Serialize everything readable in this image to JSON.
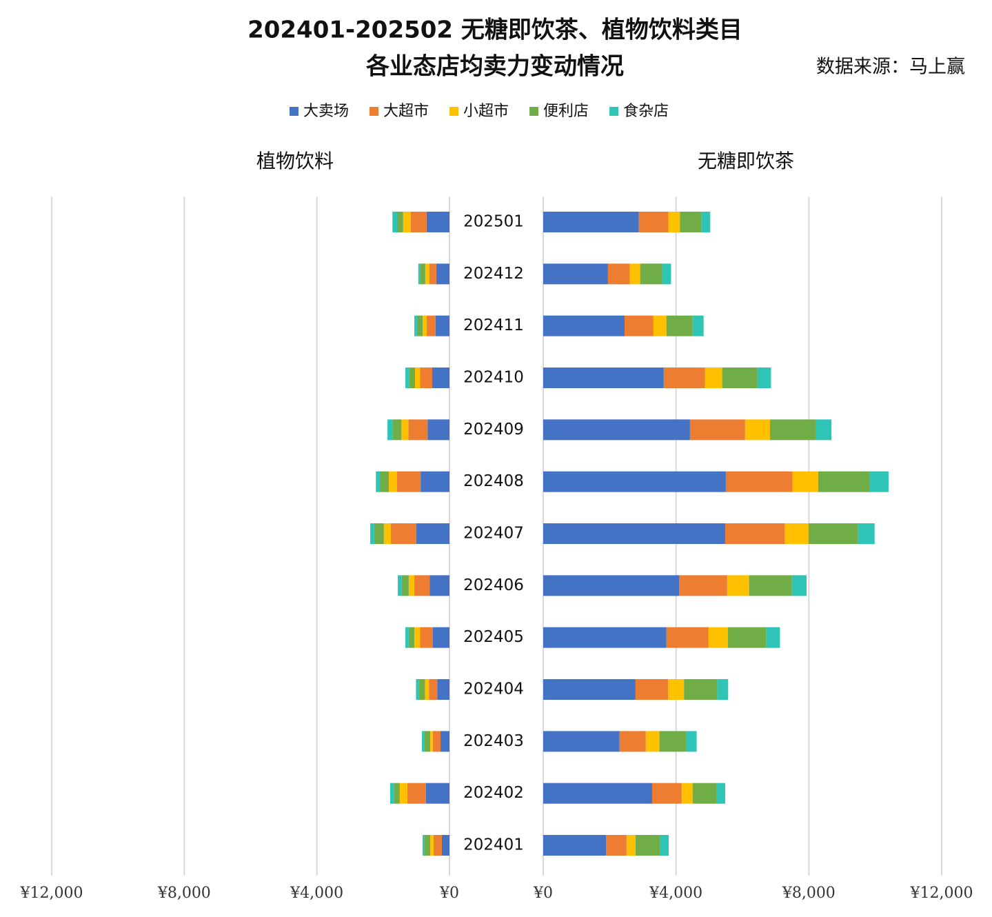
{
  "title": [
    "202401-202502 无糖即饮茶、植物饮料类目",
    "各业态店均卖力变动情况"
  ],
  "source": "数据来源：马上赢",
  "chart_data": [
    {
      "type": "bar",
      "orientation": "horizontal",
      "stacked": true,
      "x_reversed": true,
      "grid": true,
      "subtitle": "植物饮料",
      "xlim": [
        0,
        12000
      ],
      "xticks": [
        {
          "value": 0,
          "label": "¥0"
        },
        {
          "value": 4000,
          "label": "¥4,000"
        },
        {
          "value": 8000,
          "label": "¥8,000"
        },
        {
          "value": 12000,
          "label": "¥12,000"
        }
      ],
      "series": [
        {
          "name": "大卖场",
          "color": "#4472c4",
          "values": [
            690,
            400,
            420,
            520,
            660,
            870,
            1000,
            600,
            500,
            370,
            270,
            710,
            230
          ]
        },
        {
          "name": "大超市",
          "color": "#ed7d31",
          "values": [
            480,
            210,
            270,
            370,
            580,
            710,
            770,
            460,
            390,
            250,
            230,
            560,
            250
          ]
        },
        {
          "name": "小超市",
          "color": "#ffc000",
          "values": [
            230,
            120,
            120,
            150,
            210,
            250,
            210,
            170,
            170,
            120,
            80,
            230,
            100
          ]
        },
        {
          "name": "便利店",
          "color": "#70ad47",
          "values": [
            170,
            150,
            170,
            170,
            270,
            270,
            290,
            210,
            170,
            190,
            170,
            170,
            170
          ]
        },
        {
          "name": "食杂店",
          "color": "#2ec4b6",
          "values": [
            150,
            60,
            80,
            120,
            150,
            120,
            120,
            120,
            100,
            80,
            80,
            120,
            60
          ]
        }
      ]
    },
    {
      "type": "bar",
      "orientation": "horizontal",
      "stacked": true,
      "x_reversed": false,
      "grid": true,
      "subtitle": "无糖即饮茶",
      "categories": [
        "202501",
        "202412",
        "202411",
        "202410",
        "202409",
        "202408",
        "202407",
        "202406",
        "202405",
        "202404",
        "202403",
        "202402",
        "202401"
      ],
      "xlim": [
        0,
        12000
      ],
      "xticks": [
        {
          "value": 0,
          "label": "¥0"
        },
        {
          "value": 4000,
          "label": "¥4,000"
        },
        {
          "value": 8000,
          "label": "¥8,000"
        },
        {
          "value": 12000,
          "label": "¥12,000"
        }
      ],
      "series": [
        {
          "color": "#4472c4",
          "values": [
            2880,
            1950,
            2450,
            3630,
            4420,
            5500,
            5480,
            4090,
            3710,
            2780,
            2300,
            3280,
            1890
          ]
        },
        {
          "color": "#ed7d31",
          "values": [
            890,
            660,
            870,
            1240,
            1660,
            2010,
            1800,
            1450,
            1270,
            980,
            790,
            890,
            620
          ]
        },
        {
          "color": "#ffc000",
          "values": [
            350,
            310,
            390,
            520,
            750,
            770,
            710,
            660,
            580,
            480,
            410,
            330,
            270
          ]
        },
        {
          "color": "#70ad47",
          "values": [
            640,
            660,
            790,
            1060,
            1370,
            1560,
            1490,
            1290,
            1160,
            1000,
            810,
            730,
            730
          ]
        },
        {
          "color": "#2ec4b6",
          "values": [
            270,
            270,
            330,
            410,
            480,
            560,
            500,
            440,
            410,
            330,
            310,
            250,
            270
          ]
        }
      ]
    }
  ]
}
